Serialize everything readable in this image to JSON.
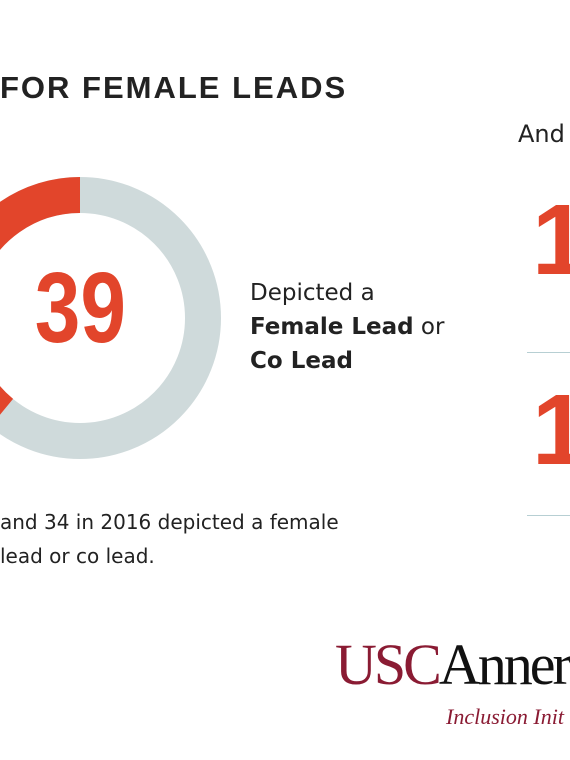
{
  "header": {
    "title": "FOR FEMALE LEADS"
  },
  "chart_data": {
    "type": "pie",
    "style": "donut",
    "value": 39,
    "total": 100,
    "value_label": "39",
    "colors": {
      "value": "#e2452b",
      "remainder": "#cfdadb"
    },
    "description": {
      "line1": "Depicted a",
      "line2_bold": "Female Lead",
      "line2_tail": " or",
      "line3_bold": "Co Lead"
    }
  },
  "footnote": {
    "line1": "and 34 in 2016 depicted a female",
    "line2": "lead or co lead."
  },
  "right_panel": {
    "label": "And",
    "number_1": "1",
    "number_2": "1"
  },
  "logo": {
    "usc": "USC",
    "annenberg": "Anner",
    "subtitle": "Inclusion Init"
  },
  "colors": {
    "accent": "#e2452b",
    "brand": "#8a1b33",
    "divider": "#b7cfd3"
  }
}
